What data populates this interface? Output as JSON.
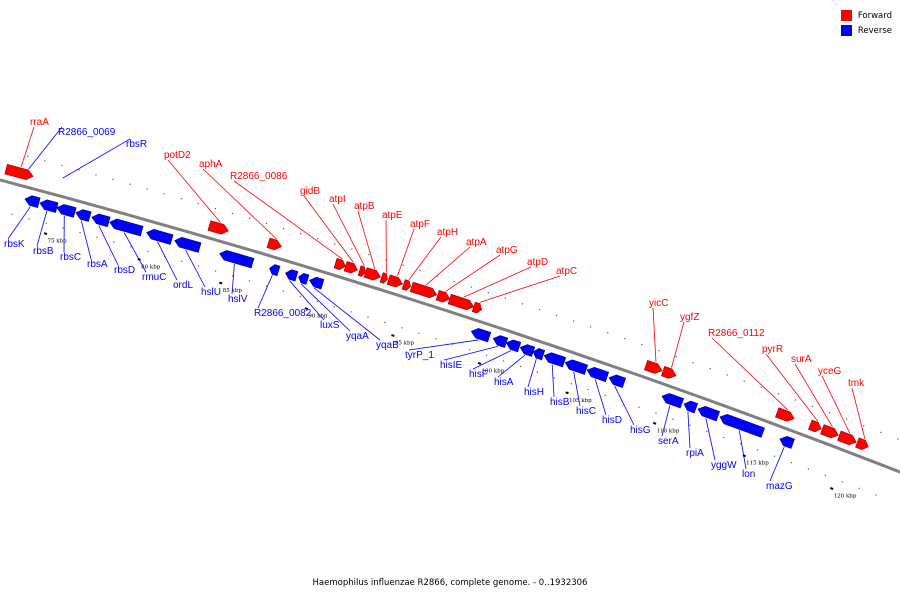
{
  "caption": "Haemophilus influenzae R2866, complete genome. - 0..1932306",
  "legend": [
    {
      "label": "Forward",
      "color": "#ff0000"
    },
    {
      "label": "Reverse",
      "color": "#0000ff"
    }
  ],
  "colors": {
    "forward": "#ff0000",
    "reverse": "#0000ff",
    "backbone": "#888888"
  },
  "scale_unit": "kbp",
  "scale_ticks": [
    75,
    80,
    85,
    90,
    95,
    100,
    105,
    110,
    115,
    120
  ],
  "genes": [
    {
      "name": "rraA",
      "strand": "forward"
    },
    {
      "name": "R2866_0069",
      "strand": "reverse"
    },
    {
      "name": "rbsR",
      "strand": "reverse"
    },
    {
      "name": "rbsK",
      "strand": "reverse"
    },
    {
      "name": "rbsB",
      "strand": "reverse"
    },
    {
      "name": "rbsC",
      "strand": "reverse"
    },
    {
      "name": "rbsA",
      "strand": "reverse"
    },
    {
      "name": "rbsD",
      "strand": "reverse"
    },
    {
      "name": "rmuC",
      "strand": "reverse"
    },
    {
      "name": "ordL",
      "strand": "reverse"
    },
    {
      "name": "potD2",
      "strand": "forward"
    },
    {
      "name": "aphA",
      "strand": "forward"
    },
    {
      "name": "R2866_0086",
      "strand": "forward"
    },
    {
      "name": "hslU",
      "strand": "reverse"
    },
    {
      "name": "hslV",
      "strand": "reverse"
    },
    {
      "name": "R2866_0082",
      "strand": "reverse"
    },
    {
      "name": "luxS",
      "strand": "reverse"
    },
    {
      "name": "yqaA",
      "strand": "reverse"
    },
    {
      "name": "yqaB",
      "strand": "reverse"
    },
    {
      "name": "gidB",
      "strand": "forward"
    },
    {
      "name": "atpI",
      "strand": "forward"
    },
    {
      "name": "atpB",
      "strand": "forward"
    },
    {
      "name": "atpE",
      "strand": "forward"
    },
    {
      "name": "atpF",
      "strand": "forward"
    },
    {
      "name": "atpH",
      "strand": "forward"
    },
    {
      "name": "atpA",
      "strand": "forward"
    },
    {
      "name": "atpG",
      "strand": "forward"
    },
    {
      "name": "atpD",
      "strand": "forward"
    },
    {
      "name": "atpC",
      "strand": "forward"
    },
    {
      "name": "tyrP_1",
      "strand": "reverse"
    },
    {
      "name": "hisIE",
      "strand": "reverse"
    },
    {
      "name": "hisF",
      "strand": "reverse"
    },
    {
      "name": "hisA",
      "strand": "reverse"
    },
    {
      "name": "hisH",
      "strand": "reverse"
    },
    {
      "name": "hisB",
      "strand": "reverse"
    },
    {
      "name": "hisC",
      "strand": "reverse"
    },
    {
      "name": "hisD",
      "strand": "reverse"
    },
    {
      "name": "hisG",
      "strand": "reverse"
    },
    {
      "name": "yicC",
      "strand": "forward"
    },
    {
      "name": "ygfZ",
      "strand": "forward"
    },
    {
      "name": "R2866_0112",
      "strand": "forward"
    },
    {
      "name": "pyrR",
      "strand": "forward"
    },
    {
      "name": "surA",
      "strand": "forward"
    },
    {
      "name": "yceG",
      "strand": "forward"
    },
    {
      "name": "tmk",
      "strand": "forward"
    },
    {
      "name": "serA",
      "strand": "reverse"
    },
    {
      "name": "rpiA",
      "strand": "reverse"
    },
    {
      "name": "yggW",
      "strand": "reverse"
    },
    {
      "name": "lon",
      "strand": "reverse"
    },
    {
      "name": "mazG",
      "strand": "reverse"
    }
  ]
}
